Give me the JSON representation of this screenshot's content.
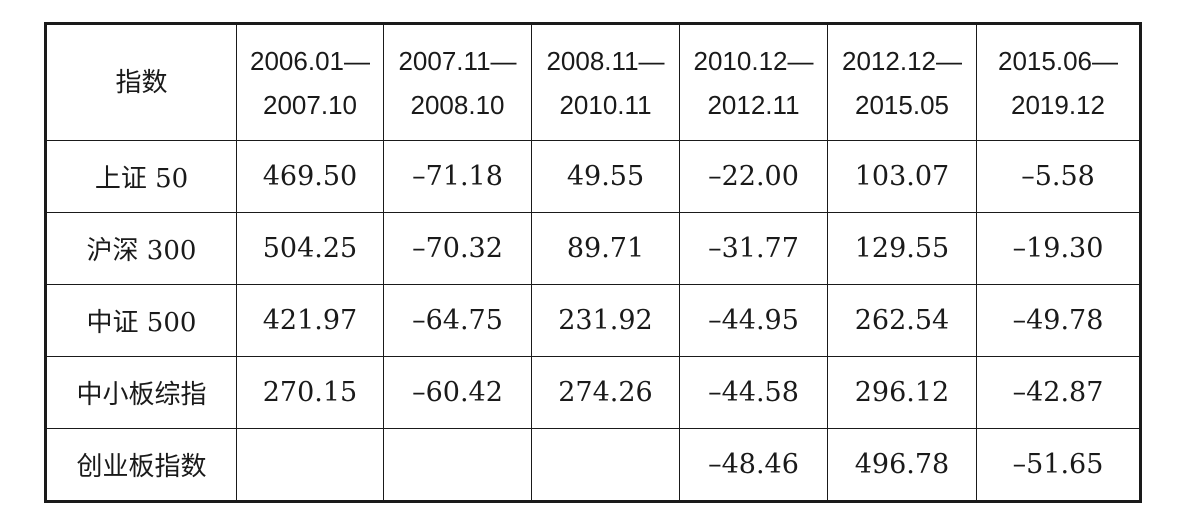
{
  "table": {
    "header": [
      "指数",
      [
        "2006.01—",
        "2007.10"
      ],
      [
        "2007.11—",
        "2008.10"
      ],
      [
        "2008.11—",
        "2010.11"
      ],
      [
        "2010.12—",
        "2012.11"
      ],
      [
        "2012.12—",
        "2015.05"
      ],
      [
        "2015.06—",
        "2019.12"
      ]
    ],
    "rows": [
      [
        "上证 50",
        "469.50",
        "–71.18",
        "49.55",
        "–22.00",
        "103.07",
        "–5.58"
      ],
      [
        "沪深 300",
        "504.25",
        "–70.32",
        "89.71",
        "–31.77",
        "129.55",
        "–19.30"
      ],
      [
        "中证 500",
        "421.97",
        "–64.75",
        "231.92",
        "–44.95",
        "262.54",
        "–49.78"
      ],
      [
        "中小板综指",
        "270.15",
        "–60.42",
        "274.26",
        "–44.58",
        "296.12",
        "–42.87"
      ],
      [
        "创业板指数",
        null,
        null,
        null,
        "–48.46",
        "496.78",
        "–51.65"
      ]
    ]
  }
}
